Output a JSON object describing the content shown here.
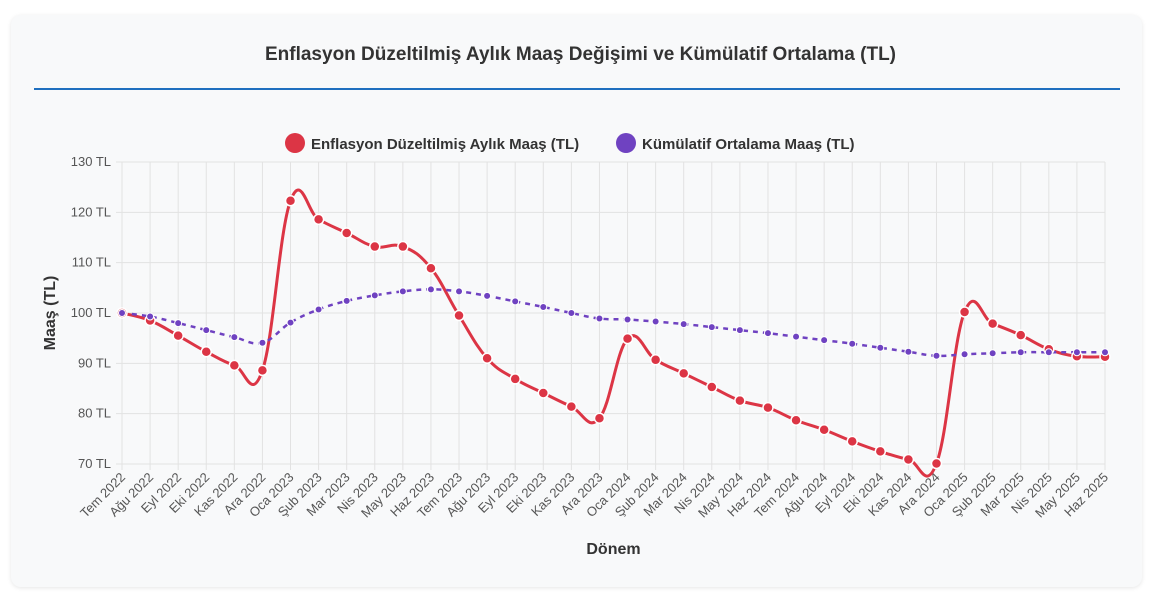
{
  "page": {
    "title": "Enflasyon Düzeltilmiş Aylık Maaş Değişimi ve Kümülatif Ortalama (TL)"
  },
  "chart_data": {
    "type": "line",
    "title": "Enflasyon Düzeltilmiş Aylık Maaş Değişimi ve Kümülatif Ortalama (TL)",
    "xlabel": "Dönem",
    "ylabel": "Maaş (TL)",
    "ylim": [
      70,
      130
    ],
    "yticks": [
      70,
      80,
      90,
      100,
      110,
      120,
      130
    ],
    "ytick_labels": [
      "70 TL",
      "80 TL",
      "90 TL",
      "100 TL",
      "110 TL",
      "120 TL",
      "130 TL"
    ],
    "grid": true,
    "legend_position": "top-center",
    "categories": [
      "Tem 2022",
      "Ağu 2022",
      "Eyl 2022",
      "Eki 2022",
      "Kas 2022",
      "Ara 2022",
      "Oca 2023",
      "Şub 2023",
      "Mar 2023",
      "Nis 2023",
      "May 2023",
      "Haz 2023",
      "Tem 2023",
      "Ağu 2023",
      "Eyl 2023",
      "Eki 2023",
      "Kas 2023",
      "Ara 2023",
      "Oca 2024",
      "Şub 2024",
      "Mar 2024",
      "Nis 2024",
      "May 2024",
      "Haz 2024",
      "Tem 2024",
      "Ağu 2024",
      "Eyl 2024",
      "Eki 2024",
      "Kas 2024",
      "Ara 2024",
      "Oca 2025",
      "Şub 2025",
      "Mar 2025",
      "Nis 2025",
      "May 2025",
      "Haz 2025"
    ],
    "series": [
      {
        "name": "Enflasyon Düzeltilmiş Aylık Maaş (TL)",
        "color": "#dc3545",
        "style": "solid",
        "values": [
          100.0,
          98.5,
          95.5,
          92.3,
          89.6,
          88.6,
          122.3,
          118.6,
          115.9,
          113.2,
          113.2,
          108.9,
          99.5,
          91.0,
          86.9,
          84.1,
          81.4,
          79.1,
          94.9,
          90.7,
          88.0,
          85.3,
          82.6,
          81.2,
          78.7,
          76.8,
          74.5,
          72.5,
          70.9,
          70.1,
          100.2,
          97.9,
          95.6,
          92.8,
          91.4,
          91.3
        ]
      },
      {
        "name": "Kümülatif Ortalama Maaş (TL)",
        "color": "#6f42c1",
        "style": "dashed",
        "values": [
          100.0,
          99.3,
          98.0,
          96.6,
          95.2,
          94.1,
          98.1,
          100.7,
          102.4,
          103.5,
          104.3,
          104.7,
          104.3,
          103.4,
          102.3,
          101.2,
          100.0,
          98.9,
          98.7,
          98.3,
          97.8,
          97.2,
          96.6,
          96.0,
          95.3,
          94.6,
          93.9,
          93.1,
          92.3,
          91.5,
          91.8,
          92.0,
          92.2,
          92.2,
          92.2,
          92.2
        ]
      }
    ]
  }
}
